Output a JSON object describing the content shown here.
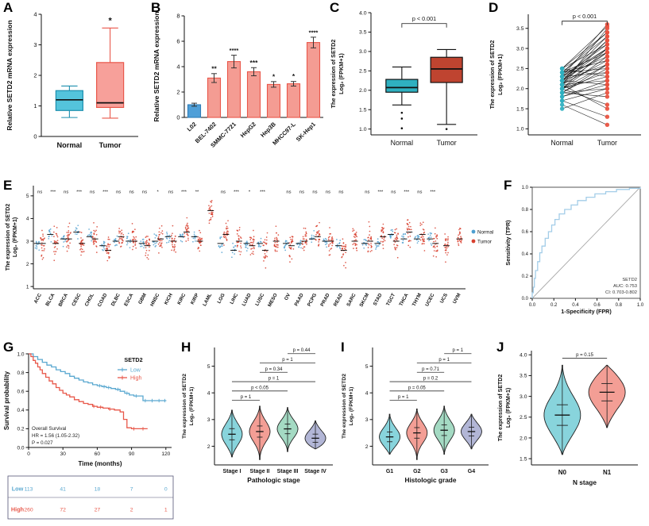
{
  "figure": {
    "background": "#ffffff",
    "panels": {
      "A": {
        "label": "A"
      },
      "B": {
        "label": "B"
      },
      "C": {
        "label": "C"
      },
      "D": {
        "label": "D"
      },
      "E": {
        "label": "E"
      },
      "F": {
        "label": "F"
      },
      "G": {
        "label": "G"
      },
      "H": {
        "label": "H"
      },
      "I": {
        "label": "I"
      },
      "J": {
        "label": "J"
      }
    }
  },
  "chart_data": [
    {
      "panel": "A",
      "type": "box",
      "ylabel": [
        "Relative SETD2 mRNA expression"
      ],
      "categories": [
        "Normal",
        "Tumor"
      ],
      "ylim": [
        0,
        4
      ],
      "yticks": [
        "0",
        "1",
        "2",
        "3",
        "4"
      ],
      "boxes": [
        {
          "low": 0.62,
          "q1": 0.85,
          "median": 1.2,
          "q3": 1.5,
          "high": 1.65,
          "fill": "#54c4dc",
          "stroke": "#1d8fae",
          "outliers": []
        },
        {
          "low": 0.6,
          "q1": 0.95,
          "median": 1.1,
          "q3": 2.42,
          "high": 3.55,
          "fill": "#f7a09a",
          "stroke": "#e9574a",
          "outliers": [],
          "sig": "*"
        }
      ]
    },
    {
      "panel": "B",
      "type": "bar",
      "ylabel": [
        "Relative SETD2 mRNA expression"
      ],
      "categories": [
        "L02",
        "BEL-7402",
        "SMMC-7721",
        "HepG2",
        "Hep3B",
        "MHCC97-L",
        "SK-Hep1"
      ],
      "values": [
        1.0,
        3.1,
        4.4,
        3.6,
        2.6,
        2.65,
        5.9
      ],
      "errors": [
        0.12,
        0.35,
        0.5,
        0.32,
        0.22,
        0.18,
        0.42
      ],
      "sig": [
        "",
        "**",
        "****",
        "***",
        "*",
        "*",
        "****"
      ],
      "ylim": [
        0,
        8
      ],
      "yticks": [
        "0",
        "2",
        "4",
        "6",
        "8"
      ],
      "bar_colors": [
        "#4f9fd8",
        "#f49c93",
        "#f49c93",
        "#f49c93",
        "#f49c93",
        "#f49c93",
        "#f49c93"
      ],
      "bar_strokes": [
        "#2e7cb8",
        "#e9574a",
        "#e9574a",
        "#e9574a",
        "#e9574a",
        "#e9574a",
        "#e9574a"
      ]
    },
    {
      "panel": "C",
      "type": "box",
      "ylabel": [
        "The expression of SETD2",
        "Log₂ (FPKM+1)"
      ],
      "categories": [
        "Normal",
        "Tumor"
      ],
      "ylim": [
        0.85,
        4.0
      ],
      "yticks": [
        "1.0",
        "1.5",
        "2.0",
        "2.5",
        "3.0",
        "3.5",
        "4.0"
      ],
      "pvalue": {
        "text": "p < 0.001",
        "y": 3.72
      },
      "boxes": [
        {
          "low": 1.62,
          "q1": 1.95,
          "median": 2.07,
          "q3": 2.28,
          "high": 2.6,
          "fill": "#2fb0c0",
          "stroke": "#111111",
          "outliers": [
            1.42,
            1.27,
            1.02
          ]
        },
        {
          "low": 1.12,
          "q1": 2.2,
          "median": 2.55,
          "q3": 2.85,
          "high": 3.05,
          "fill": "#bf4430",
          "stroke": "#111111",
          "outliers": [
            1.0
          ]
        }
      ]
    },
    {
      "panel": "D",
      "type": "paired",
      "ylabel": [
        "The expression of SETD2",
        "Log₂ (FPKM+1)"
      ],
      "categories": [
        "Normal",
        "Tumor"
      ],
      "colors": [
        "#2fb0c0",
        "#e9503e"
      ],
      "ylim": [
        0.85,
        3.85
      ],
      "yticks": [
        "1.0",
        "1.5",
        "2.0",
        "2.5",
        "3.0",
        "3.5"
      ],
      "pvalue": {
        "text": "p < 0.001",
        "y": 3.68
      },
      "pairs": [
        [
          2.0,
          2.6
        ],
        [
          2.1,
          3.5
        ],
        [
          2.2,
          2.9
        ],
        [
          1.9,
          2.5
        ],
        [
          2.3,
          3.1
        ],
        [
          2.0,
          1.6
        ],
        [
          2.4,
          3.3
        ],
        [
          2.1,
          2.2
        ],
        [
          2.5,
          3.4
        ],
        [
          1.8,
          2.1
        ],
        [
          2.2,
          3.0
        ],
        [
          2.0,
          2.8
        ],
        [
          2.3,
          2.4
        ],
        [
          1.7,
          1.3
        ],
        [
          2.4,
          2.9
        ],
        [
          2.1,
          3.2
        ],
        [
          1.9,
          2.0
        ],
        [
          2.2,
          2.6
        ],
        [
          2.5,
          3.55
        ],
        [
          2.0,
          2.3
        ],
        [
          1.6,
          1.1
        ],
        [
          2.3,
          3.0
        ],
        [
          2.4,
          2.5
        ],
        [
          2.1,
          2.7
        ],
        [
          1.9,
          1.8
        ],
        [
          2.2,
          3.3
        ],
        [
          2.0,
          2.4
        ],
        [
          2.5,
          3.1
        ],
        [
          1.8,
          2.2
        ],
        [
          2.3,
          2.8
        ],
        [
          2.1,
          1.5
        ],
        [
          2.4,
          3.4
        ],
        [
          1.9,
          2.6
        ],
        [
          2.2,
          2.1
        ],
        [
          2.0,
          3.0
        ],
        [
          2.3,
          3.6
        ],
        [
          1.7,
          2.0
        ],
        [
          2.4,
          2.7
        ],
        [
          2.1,
          2.9
        ],
        [
          2.5,
          2.3
        ],
        [
          1.5,
          1.9
        ],
        [
          2.2,
          3.2
        ]
      ]
    },
    {
      "panel": "E",
      "type": "strip",
      "ylabel": [
        "The expression of SETD2",
        "Log₂ (FPKM+1)"
      ],
      "ylim": [
        0.9,
        5.45
      ],
      "yticks": [
        "1",
        "2",
        "3",
        "4",
        "5"
      ],
      "legend": [
        "Normal",
        "Tumor"
      ],
      "colors": [
        "#4d9fd0",
        "#d8402e"
      ],
      "nsd": 0.18,
      "tsd": 0.4,
      "sig_y": 5.12,
      "categories": [
        "ACC",
        "BLCA",
        "BRCA",
        "CESC",
        "CHOL",
        "COAD",
        "DLBC",
        "ESCA",
        "GBM",
        "HNSC",
        "KICH",
        "KIRC",
        "KIRP",
        "LAML",
        "LGG",
        "LIHC",
        "LUAD",
        "LUSC",
        "MESO",
        "OV",
        "PAAD",
        "PCPG",
        "PRAD",
        "READ",
        "SARC",
        "SKCM",
        "STAD",
        "TGCT",
        "THCA",
        "THYM",
        "UCEC",
        "UCS",
        "UVM"
      ],
      "normal_mean": [
        2.9,
        3.3,
        3.1,
        3.4,
        3.2,
        2.8,
        3.0,
        3.0,
        2.9,
        3.0,
        3.2,
        3.2,
        3.2,
        null,
        2.9,
        2.6,
        2.9,
        2.9,
        null,
        2.9,
        2.9,
        3.1,
        3.0,
        2.8,
        null,
        2.9,
        2.9,
        3.3,
        3.1,
        3.1,
        3.1,
        null,
        null
      ],
      "tumor_mean": [
        2.9,
        2.9,
        3.1,
        2.9,
        3.1,
        2.6,
        3.2,
        3.0,
        2.8,
        3.1,
        3.0,
        3.4,
        3.0,
        4.35,
        3.3,
        3.0,
        2.8,
        2.6,
        3.0,
        2.8,
        3.0,
        3.2,
        3.0,
        2.6,
        3.0,
        3.0,
        3.2,
        3.0,
        3.4,
        3.3,
        2.9,
        2.8,
        3.1
      ],
      "sig": [
        "ns",
        "***",
        "ns",
        "***",
        "ns",
        "***",
        "ns",
        "ns",
        "ns",
        "*",
        "ns",
        "***",
        "**",
        "",
        "ns",
        "***",
        "*",
        "***",
        "",
        "ns",
        "ns",
        "ns",
        "ns",
        "ns",
        "",
        "ns",
        "***",
        "ns",
        "***",
        "ns",
        "***",
        "",
        ""
      ]
    },
    {
      "panel": "F",
      "type": "roc",
      "xlabel": "1-Specificity (FPR)",
      "ylabel": "Sensitivity (TPR)",
      "xticks": [
        "0.0",
        "0.2",
        "0.4",
        "0.6",
        "0.8",
        "1.0"
      ],
      "yticks": [
        "0.0",
        "0.2",
        "0.4",
        "0.6",
        "0.8",
        "1.0"
      ],
      "annotation": [
        "SETD2",
        "AUC: 0.753",
        "CI: 0.703-0.802"
      ],
      "color": "#a3cde8",
      "curve": [
        [
          0,
          0
        ],
        [
          0,
          0.05
        ],
        [
          0.01,
          0.1
        ],
        [
          0.02,
          0.18
        ],
        [
          0.03,
          0.25
        ],
        [
          0.05,
          0.33
        ],
        [
          0.07,
          0.41
        ],
        [
          0.09,
          0.47
        ],
        [
          0.12,
          0.54
        ],
        [
          0.15,
          0.6
        ],
        [
          0.18,
          0.66
        ],
        [
          0.21,
          0.71
        ],
        [
          0.25,
          0.76
        ],
        [
          0.3,
          0.8
        ],
        [
          0.36,
          0.84
        ],
        [
          0.42,
          0.88
        ],
        [
          0.5,
          0.91
        ],
        [
          0.58,
          0.94
        ],
        [
          0.68,
          0.96
        ],
        [
          0.78,
          0.98
        ],
        [
          0.9,
          0.99
        ],
        [
          1,
          1
        ]
      ]
    },
    {
      "panel": "G",
      "type": "km",
      "xlabel": "Time (months)",
      "ylabel": "Survival probability",
      "xlim": [
        0,
        125
      ],
      "xticks": [
        "0",
        "30",
        "60",
        "90",
        "120"
      ],
      "yticks": [
        "0.0",
        "0.2",
        "0.4",
        "0.6",
        "0.8",
        "1.0"
      ],
      "legend_title": "SETD2",
      "annotation": [
        "Overall Survival",
        "HR = 1.56 (1.05-2.32)",
        "P = 0.027"
      ],
      "series": [
        {
          "name": "Low",
          "color": "#5aa8d0",
          "steps": [
            [
              0,
              1
            ],
            [
              4,
              0.97
            ],
            [
              8,
              0.94
            ],
            [
              12,
              0.91
            ],
            [
              16,
              0.88
            ],
            [
              20,
              0.86
            ],
            [
              24,
              0.83
            ],
            [
              28,
              0.81
            ],
            [
              32,
              0.79
            ],
            [
              36,
              0.76
            ],
            [
              40,
              0.74
            ],
            [
              44,
              0.72
            ],
            [
              48,
              0.7
            ],
            [
              52,
              0.69
            ],
            [
              56,
              0.67
            ],
            [
              60,
              0.66
            ],
            [
              64,
              0.65
            ],
            [
              68,
              0.64
            ],
            [
              72,
              0.63
            ],
            [
              76,
              0.62
            ],
            [
              80,
              0.6
            ],
            [
              84,
              0.58
            ],
            [
              88,
              0.56
            ],
            [
              92,
              0.55
            ],
            [
              96,
              0.55
            ],
            [
              100,
              0.5
            ],
            [
              110,
              0.5
            ],
            [
              120,
              0.5
            ]
          ],
          "censors": [
            62,
            66,
            70,
            78,
            86,
            94,
            102,
            108,
            114,
            119
          ]
        },
        {
          "name": "High",
          "color": "#e8584a",
          "steps": [
            [
              0,
              1
            ],
            [
              2,
              0.97
            ],
            [
              4,
              0.93
            ],
            [
              6,
              0.9
            ],
            [
              8,
              0.86
            ],
            [
              10,
              0.83
            ],
            [
              12,
              0.79
            ],
            [
              15,
              0.75
            ],
            [
              18,
              0.71
            ],
            [
              21,
              0.68
            ],
            [
              24,
              0.64
            ],
            [
              27,
              0.61
            ],
            [
              30,
              0.58
            ],
            [
              33,
              0.56
            ],
            [
              36,
              0.54
            ],
            [
              40,
              0.51
            ],
            [
              44,
              0.49
            ],
            [
              48,
              0.47
            ],
            [
              52,
              0.46
            ],
            [
              56,
              0.44
            ],
            [
              60,
              0.43
            ],
            [
              65,
              0.42
            ],
            [
              70,
              0.41
            ],
            [
              75,
              0.4
            ],
            [
              80,
              0.38
            ],
            [
              83,
              0.3
            ],
            [
              86,
              0.21
            ],
            [
              90,
              0.2
            ],
            [
              96,
              0.2
            ],
            [
              104,
              0.2
            ]
          ],
          "censors": [
            57,
            63,
            71,
            92,
            100
          ]
        }
      ],
      "risk_table": {
        "times": [
          0,
          30,
          60,
          90,
          120
        ],
        "rows": [
          {
            "label": "Low",
            "color": "#5aa8d0",
            "values": [
              "113",
              "41",
              "18",
              "7",
              "0"
            ]
          },
          {
            "label": "High",
            "color": "#e8584a",
            "values": [
              "260",
              "72",
              "27",
              "2",
              "1"
            ]
          }
        ]
      }
    },
    {
      "panel": "H",
      "type": "violin",
      "ylabel": [
        "The expression of SETD2",
        "Log₂ (FPKM+1)"
      ],
      "xlabel": "Pathologic stage",
      "categories": [
        "Stage I",
        "Stage II",
        "Stage III",
        "Stage IV"
      ],
      "ylim": [
        1.3,
        5.7
      ],
      "yticks": [
        "2",
        "3",
        "4",
        "5"
      ],
      "violins": [
        {
          "mean": 2.45,
          "sd": 0.38,
          "min": 1.6,
          "max": 3.35,
          "fill": "#82d2da"
        },
        {
          "mean": 2.55,
          "sd": 0.38,
          "min": 1.5,
          "max": 3.5,
          "fill": "#f2998f"
        },
        {
          "mean": 2.65,
          "sd": 0.33,
          "min": 1.8,
          "max": 3.45,
          "fill": "#9fd8c0"
        },
        {
          "mean": 2.3,
          "sd": 0.28,
          "min": 1.9,
          "max": 2.95,
          "fill": "#aeb2d4"
        }
      ],
      "comparisons": [
        {
          "a": 0,
          "b": 1,
          "y": 3.72,
          "text": "p = 1"
        },
        {
          "a": 0,
          "b": 2,
          "y": 4.07,
          "text": "p < 0.05"
        },
        {
          "a": 0,
          "b": 3,
          "y": 4.42,
          "text": "p = 1"
        },
        {
          "a": 1,
          "b": 2,
          "y": 4.77,
          "text": "p = 0.34"
        },
        {
          "a": 1,
          "b": 3,
          "y": 5.12,
          "text": "p = 1"
        },
        {
          "a": 2,
          "b": 3,
          "y": 5.47,
          "text": "p = 0.44"
        }
      ]
    },
    {
      "panel": "I",
      "type": "violin",
      "ylabel": [
        "The expression of SETD2",
        "Log₂ (FPKM+1)"
      ],
      "xlabel": "Histologic grade",
      "categories": [
        "G1",
        "G2",
        "G3",
        "G4"
      ],
      "ylim": [
        1.3,
        5.7
      ],
      "yticks": [
        "2",
        "3",
        "4",
        "5"
      ],
      "violins": [
        {
          "mean": 2.35,
          "sd": 0.33,
          "min": 1.7,
          "max": 3.2,
          "fill": "#82d2da"
        },
        {
          "mean": 2.5,
          "sd": 0.36,
          "min": 1.5,
          "max": 3.4,
          "fill": "#f2998f"
        },
        {
          "mean": 2.6,
          "sd": 0.36,
          "min": 1.7,
          "max": 3.5,
          "fill": "#9fd8c0"
        },
        {
          "mean": 2.55,
          "sd": 0.3,
          "min": 1.9,
          "max": 3.2,
          "fill": "#aeb2d4"
        }
      ],
      "comparisons": [
        {
          "a": 0,
          "b": 1,
          "y": 3.72,
          "text": "p = 1"
        },
        {
          "a": 0,
          "b": 2,
          "y": 4.07,
          "text": "p = 0.05"
        },
        {
          "a": 0,
          "b": 3,
          "y": 4.42,
          "text": "p = 0.2"
        },
        {
          "a": 1,
          "b": 2,
          "y": 4.77,
          "text": "p = 0.71"
        },
        {
          "a": 1,
          "b": 3,
          "y": 5.12,
          "text": "p = 1"
        },
        {
          "a": 2,
          "b": 3,
          "y": 5.47,
          "text": "p = 1"
        }
      ]
    },
    {
      "panel": "J",
      "type": "violin",
      "ylabel": [
        "The expression of SETD2",
        "Log₂ (FPKM+1)"
      ],
      "xlabel": "N stage",
      "categories": [
        "N0",
        "N1"
      ],
      "ylim": [
        1.35,
        4.1
      ],
      "yticks": [
        "1.5",
        "2.0",
        "2.5",
        "3.0",
        "3.5",
        "4.0"
      ],
      "violins": [
        {
          "mean": 2.55,
          "sd": 0.45,
          "min": 1.6,
          "max": 3.75,
          "fill": "#82d2da"
        },
        {
          "mean": 3.1,
          "sd": 0.38,
          "min": 2.25,
          "max": 3.75,
          "fill": "#f2998f"
        }
      ],
      "comparisons": [
        {
          "a": 0,
          "b": 1,
          "y": 3.92,
          "text": "p = 0.15"
        }
      ]
    }
  ]
}
